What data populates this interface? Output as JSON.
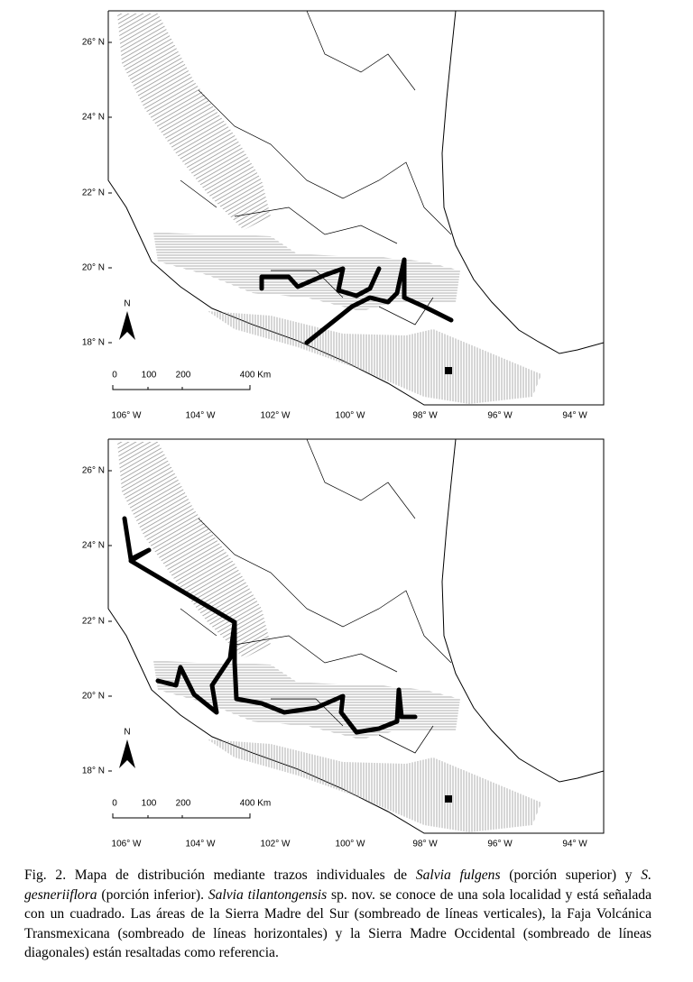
{
  "maps": [
    {
      "lat_labels": [
        "26° N",
        "24° N",
        "22° N",
        "20° N",
        "18° N"
      ],
      "lon_labels": [
        "106° W",
        "104° W",
        "102° W",
        "100° W",
        "98° W",
        "96° W",
        "94° W"
      ],
      "scale_labels": [
        "0",
        "100",
        "200",
        "400 Km"
      ],
      "north": "N"
    },
    {
      "lat_labels": [
        "26° N",
        "24° N",
        "22° N",
        "20° N",
        "18° N"
      ],
      "lon_labels": [
        "106° W",
        "104° W",
        "102° W",
        "100° W",
        "98° W",
        "96° W",
        "94° W"
      ],
      "scale_labels": [
        "0",
        "100",
        "200",
        "400 Km"
      ],
      "north": "N"
    }
  ],
  "caption": {
    "segments": [
      {
        "text": "Fig. 2. Mapa de distribución mediante trazos individuales de ",
        "italic": false
      },
      {
        "text": "Salvia fulgens",
        "italic": true
      },
      {
        "text": " (porción superior) y ",
        "italic": false
      },
      {
        "text": "S. gesneriiflora",
        "italic": true
      },
      {
        "text": " (porción inferior). ",
        "italic": false
      },
      {
        "text": "Salvia tilantongensis",
        "italic": true
      },
      {
        "text": " sp. nov. se conoce de una sola localidad y está señalada con un cuadrado. Las áreas de la Sierra Madre del Sur (sombreado de líneas verticales), la Faja Volcánica Transmexicana (sombreado de líneas horizontales) y la Sierra Madre Occidental (sombreado de líneas diagonales) están resaltadas como referencia.",
        "italic": false
      }
    ]
  }
}
